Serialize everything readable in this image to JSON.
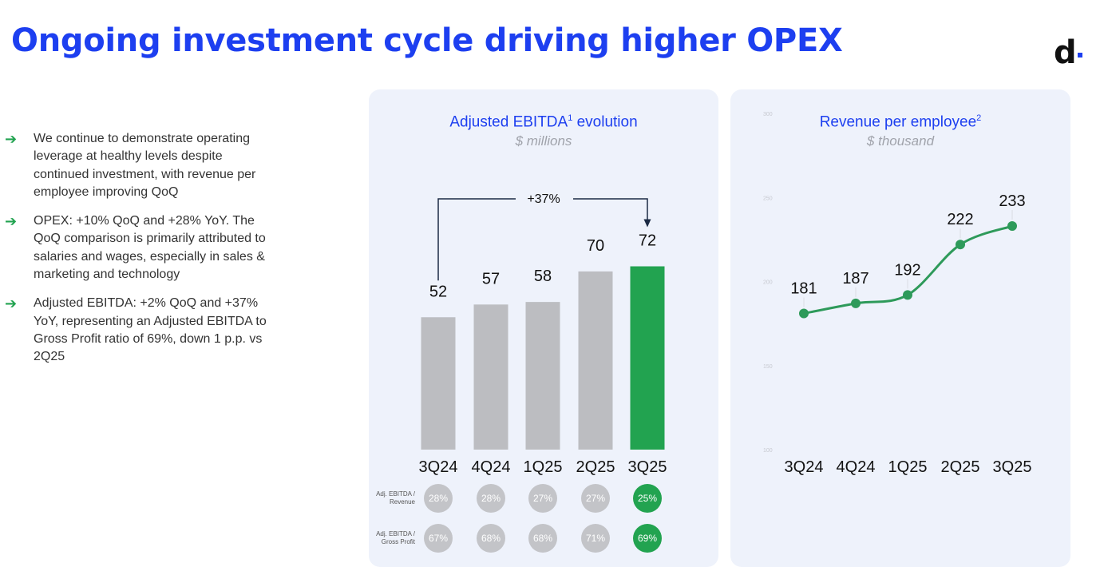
{
  "page": {
    "title": "Ongoing investment cycle driving higher OPEX",
    "logo_text": "d"
  },
  "bullets": [
    "We continue to demonstrate operating leverage at healthy levels despite continued investment, with revenue per employee improving QoQ",
    "OPEX: +10% QoQ and +28% YoY. The QoQ comparison is primarily attributed to salaries and wages, especially in sales & marketing and technology",
    "Adjusted EBITDA: +2% QoQ and +37% YoY, representing an Adjusted EBITDA to Gross Profit ratio of 69%, down 1 p.p. vs 2Q25"
  ],
  "colors": {
    "title": "#1d3ff0",
    "bar_gray": "#bcbdc1",
    "highlight_green": "#22a350",
    "line_green": "#2e9a5a",
    "panel_bg": "#eef2fb"
  },
  "chart_data": [
    {
      "type": "bar",
      "title": "Adjusted EBITDA",
      "title_sup": "1",
      "title_suffix": " evolution",
      "subtitle": "$ millions",
      "categories": [
        "3Q24",
        "4Q24",
        "1Q25",
        "2Q25",
        "3Q25"
      ],
      "values": [
        52,
        57,
        58,
        70,
        72
      ],
      "highlight_index": 4,
      "annotation": "+37%",
      "ylim": [
        0,
        80
      ],
      "ratio_rows": [
        {
          "label_line1": "Adj. EBITDA /",
          "label_line2": "Revenue",
          "values": [
            "28%",
            "28%",
            "27%",
            "27%",
            "25%"
          ]
        },
        {
          "label_line1": "Adj. EBITDA /",
          "label_line2": "Gross Profit",
          "values": [
            "67%",
            "68%",
            "68%",
            "71%",
            "69%"
          ]
        }
      ]
    },
    {
      "type": "line",
      "title": "Revenue per employee",
      "title_sup": "2",
      "subtitle": "$ thousand",
      "categories": [
        "3Q24",
        "4Q24",
        "1Q25",
        "2Q25",
        "3Q25"
      ],
      "values": [
        181,
        187,
        192,
        222,
        233
      ],
      "ylim": [
        100,
        300
      ],
      "yticks": [
        "300",
        "250",
        "200",
        "150",
        "100"
      ]
    }
  ]
}
